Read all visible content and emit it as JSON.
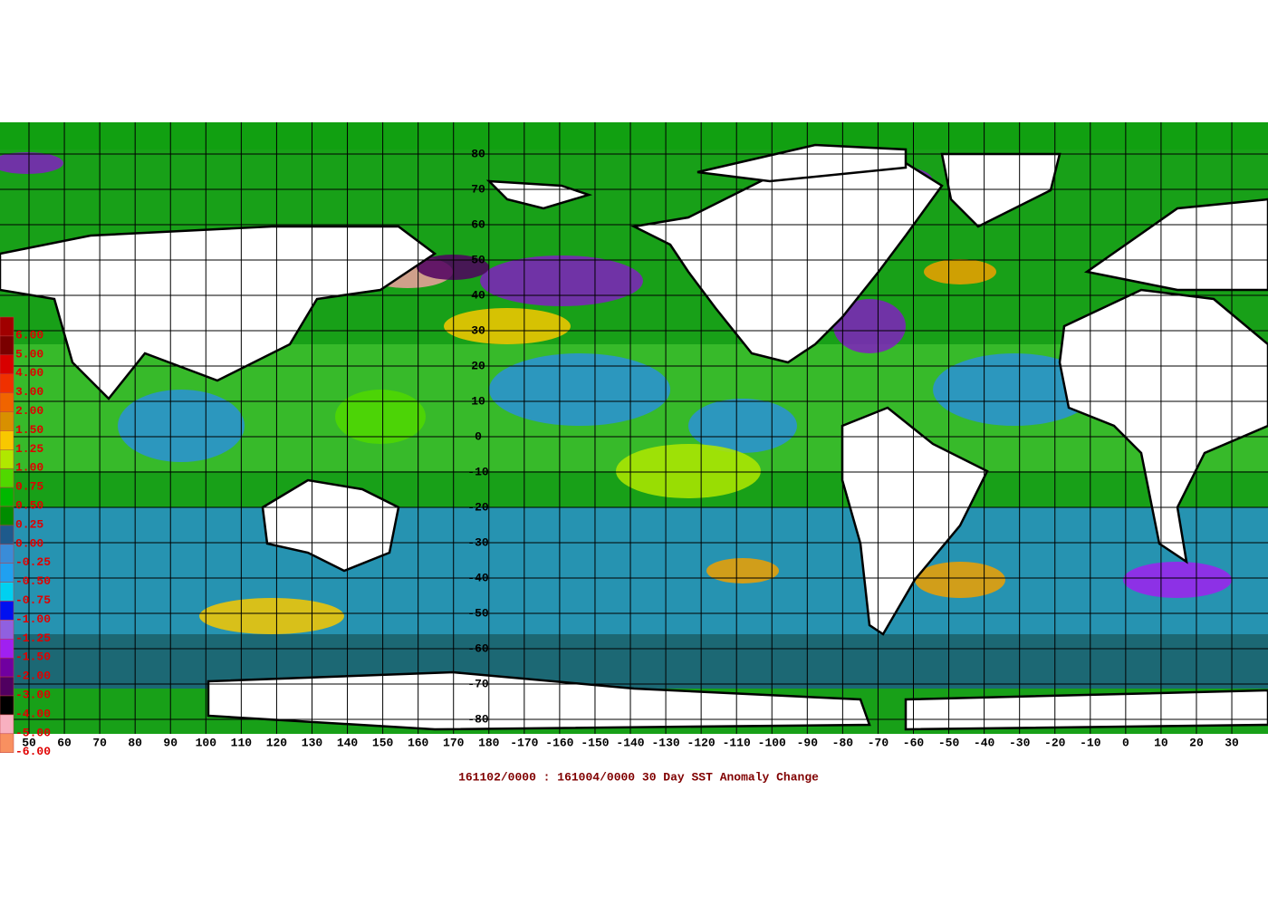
{
  "map": {
    "title": "161102/0000 : 161004/0000 30 Day SST Anomaly Change",
    "lon_labels": [
      50,
      60,
      70,
      80,
      90,
      100,
      110,
      120,
      130,
      140,
      150,
      160,
      170,
      180,
      -170,
      -160,
      -150,
      -140,
      -130,
      -120,
      -110,
      -100,
      -90,
      -80,
      -70,
      -60,
      -50,
      -40,
      -30,
      -20,
      -10,
      0,
      10,
      20,
      30
    ],
    "lat_labels": [
      80,
      70,
      60,
      50,
      40,
      30,
      20,
      10,
      0,
      -10,
      -20,
      -30,
      -40,
      -50,
      -60,
      -70,
      -80
    ],
    "legend": [
      {
        "label": "6.00",
        "color": "#a00000"
      },
      {
        "label": "5.00",
        "color": "#7a0000"
      },
      {
        "label": "4.00",
        "color": "#d80000"
      },
      {
        "label": "3.00",
        "color": "#f03000"
      },
      {
        "label": "2.00",
        "color": "#f06400"
      },
      {
        "label": "1.50",
        "color": "#d89000"
      },
      {
        "label": "1.25",
        "color": "#f8c800"
      },
      {
        "label": "1.00",
        "color": "#b0e800"
      },
      {
        "label": "0.75",
        "color": "#50d800"
      },
      {
        "label": "0.50",
        "color": "#00b800"
      },
      {
        "label": "0.25",
        "color": "#008c00"
      },
      {
        "label": "0.00",
        "color": "#1e5a8c"
      },
      {
        "label": "-0.25",
        "color": "#3a8cd8"
      },
      {
        "label": "-0.50",
        "color": "#20a0f0"
      },
      {
        "label": "-0.75",
        "color": "#00d0f0"
      },
      {
        "label": "-1.00",
        "color": "#0010f0"
      },
      {
        "label": "-1.25",
        "color": "#9060e0"
      },
      {
        "label": "-1.50",
        "color": "#a020f0"
      },
      {
        "label": "-2.00",
        "color": "#7000a0"
      },
      {
        "label": "-3.00",
        "color": "#500060"
      },
      {
        "label": "-4.00",
        "color": "#000000"
      },
      {
        "label": "-5.00",
        "color": "#f8b0c0"
      },
      {
        "label": "-6.00",
        "color": "#f89060"
      }
    ]
  }
}
